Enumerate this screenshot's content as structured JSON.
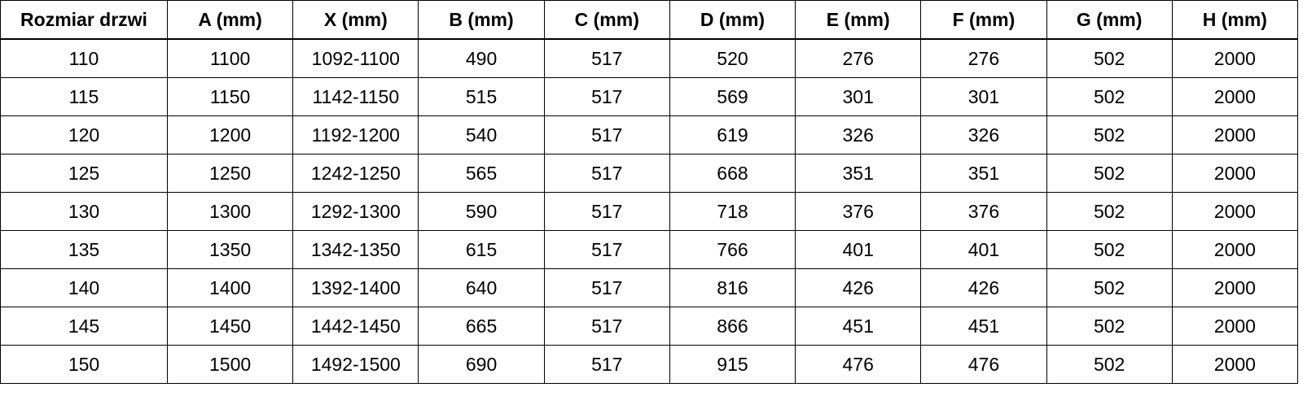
{
  "colors": {
    "border": "#000000",
    "text": "#000000",
    "background": "#ffffff"
  },
  "table": {
    "name": "door-size-dimensions-table",
    "columns": [
      "Rozmiar drzwi",
      "A (mm)",
      "X (mm)",
      "B (mm)",
      "C (mm)",
      "D (mm)",
      "E (mm)",
      "F (mm)",
      "G (mm)",
      "H (mm)"
    ],
    "rows": [
      [
        "110",
        "1100",
        "1092-1100",
        "490",
        "517",
        "520",
        "276",
        "276",
        "502",
        "2000"
      ],
      [
        "115",
        "1150",
        "1142-1150",
        "515",
        "517",
        "569",
        "301",
        "301",
        "502",
        "2000"
      ],
      [
        "120",
        "1200",
        "1192-1200",
        "540",
        "517",
        "619",
        "326",
        "326",
        "502",
        "2000"
      ],
      [
        "125",
        "1250",
        "1242-1250",
        "565",
        "517",
        "668",
        "351",
        "351",
        "502",
        "2000"
      ],
      [
        "130",
        "1300",
        "1292-1300",
        "590",
        "517",
        "718",
        "376",
        "376",
        "502",
        "2000"
      ],
      [
        "135",
        "1350",
        "1342-1350",
        "615",
        "517",
        "766",
        "401",
        "401",
        "502",
        "2000"
      ],
      [
        "140",
        "1400",
        "1392-1400",
        "640",
        "517",
        "816",
        "426",
        "426",
        "502",
        "2000"
      ],
      [
        "145",
        "1450",
        "1442-1450",
        "665",
        "517",
        "866",
        "451",
        "451",
        "502",
        "2000"
      ],
      [
        "150",
        "1500",
        "1492-1500",
        "690",
        "517",
        "915",
        "476",
        "476",
        "502",
        "2000"
      ]
    ]
  }
}
